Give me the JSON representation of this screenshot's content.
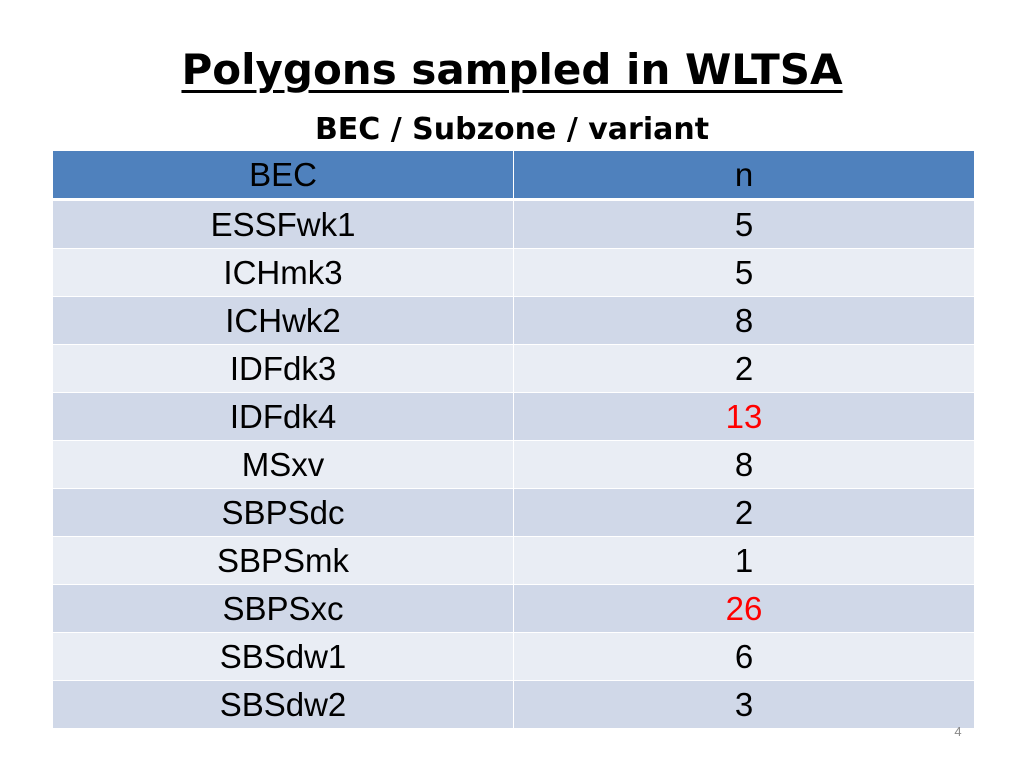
{
  "slide": {
    "title": "Polygons sampled in WLTSA",
    "subtitle": "BEC / Subzone / variant",
    "page_number": "4"
  },
  "table": {
    "columns": [
      "BEC",
      "n"
    ],
    "rows": [
      {
        "bec": "ESSFwk1",
        "n": "5",
        "highlight": false
      },
      {
        "bec": "ICHmk3",
        "n": "5",
        "highlight": false
      },
      {
        "bec": "ICHwk2",
        "n": "8",
        "highlight": false
      },
      {
        "bec": "IDFdk3",
        "n": "2",
        "highlight": false
      },
      {
        "bec": "IDFdk4",
        "n": "13",
        "highlight": true
      },
      {
        "bec": "MSxv",
        "n": "8",
        "highlight": false
      },
      {
        "bec": "SBPSdc",
        "n": "2",
        "highlight": false
      },
      {
        "bec": "SBPSmk",
        "n": "1",
        "highlight": false
      },
      {
        "bec": "SBPSxc",
        "n": "26",
        "highlight": true
      },
      {
        "bec": "SBSdw1",
        "n": "6",
        "highlight": false
      },
      {
        "bec": "SBSdw2",
        "n": "3",
        "highlight": false
      }
    ]
  },
  "colors": {
    "header_bg": "#4f81bd",
    "row_dark": "#d0d8e8",
    "row_light": "#e9edf4",
    "highlight_text": "#ff0000"
  }
}
